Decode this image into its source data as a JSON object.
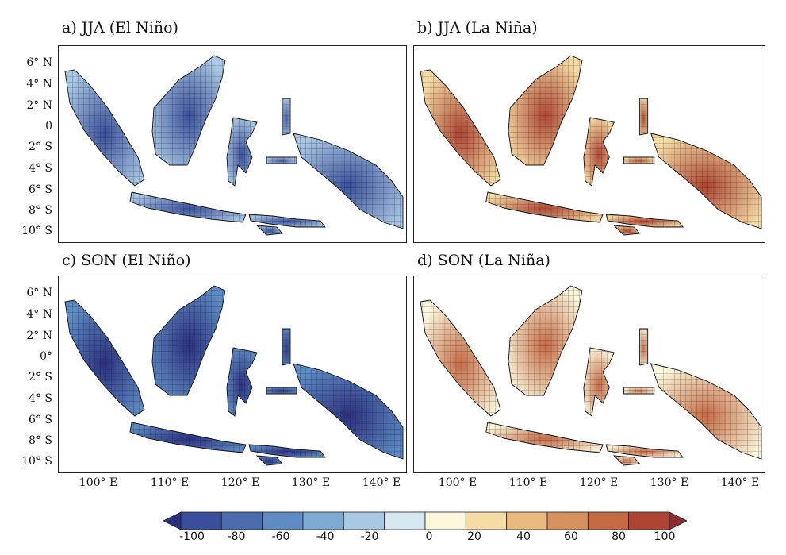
{
  "panels": [
    {
      "id": "a",
      "title": "a)  JJA (El Niño)",
      "sign": -1,
      "intensity": 0.55
    },
    {
      "id": "b",
      "title": "b)  JJA (La Niña)",
      "sign": 1,
      "intensity": 0.6
    },
    {
      "id": "c",
      "title": "c)  SON (El Niño)",
      "sign": -1,
      "intensity": 0.85
    },
    {
      "id": "d",
      "title": "d)  SON (La Niña)",
      "sign": 1,
      "intensity": 0.45
    }
  ],
  "y_axis_labels": [
    "6° N",
    "4° N",
    "2° N",
    "0",
    "2° S",
    "4° S",
    "6° S",
    "8° S",
    "10° S"
  ],
  "y_axis_labels_bottom": [
    "6° N",
    "4° N",
    "2° N",
    "0°",
    "2° S",
    "4° S",
    "6° S",
    "8° S",
    "10° S"
  ],
  "x_axis_labels": [
    "100° E",
    "110° E",
    "120° E",
    "130° E",
    "140° E"
  ],
  "colorbar": {
    "labels": [
      "-100",
      "-80",
      "-60",
      "-40",
      "-20",
      "0",
      "20",
      "40",
      "60",
      "80",
      "100"
    ],
    "colors": [
      "#2b2f7e",
      "#3a4f9a",
      "#4a6db0",
      "#5d8cc4",
      "#7eaad6",
      "#a9c8e4",
      "#d8e8f1",
      "#fbf7dc",
      "#f5dca4",
      "#e9b97d",
      "#d7915d",
      "#c56a44",
      "#ad4532",
      "#8c2c2e"
    ]
  }
}
